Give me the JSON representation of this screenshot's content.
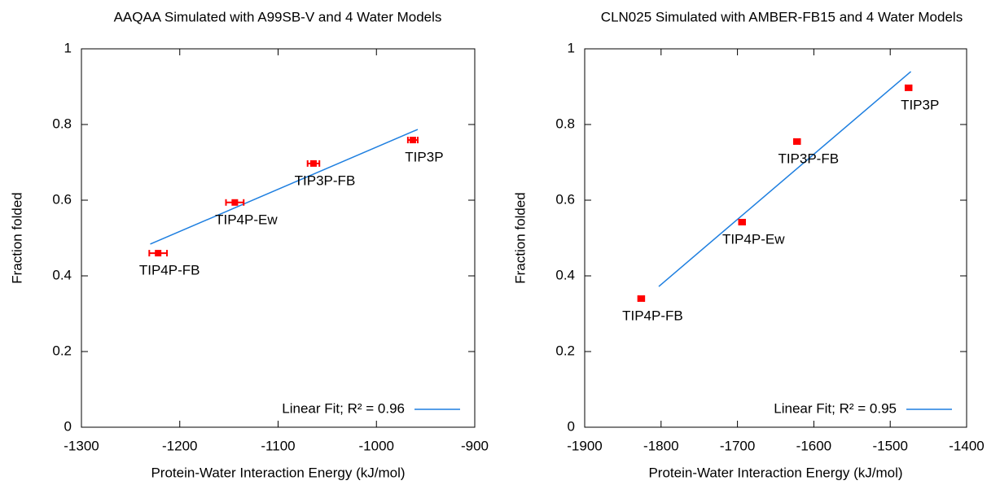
{
  "chart_data": [
    {
      "type": "scatter",
      "title": "AAQAA Simulated with A99SB-V and 4 Water Models",
      "xlabel": "Protein-Water Interaction Energy (kJ/mol)",
      "ylabel": "Fraction folded",
      "xlim": [
        -1300,
        -900
      ],
      "ylim": [
        0,
        1
      ],
      "xticks": [
        -1300,
        -1200,
        -1100,
        -1000,
        -900
      ],
      "yticks": [
        0,
        0.2,
        0.4,
        0.6,
        0.8,
        1
      ],
      "legend": "lower right",
      "points": {
        "color": "#ff0000",
        "labels": [
          "TIP4P-FB",
          "TIP4P-Ew",
          "TIP3P-FB",
          "TIP3P"
        ],
        "x": [
          -1222,
          -1144,
          -1064,
          -963
        ],
        "values": [
          0.46,
          0.594,
          0.697,
          0.759
        ],
        "xerr": [
          9,
          9,
          6,
          5
        ]
      },
      "fit": {
        "name": "Linear Fit; R² = 0.96",
        "color": "#1e7fe0",
        "x": [
          -1230,
          -958
        ],
        "values": [
          0.484,
          0.787
        ]
      }
    },
    {
      "type": "scatter",
      "title": "CLN025 Simulated with AMBER-FB15 and 4 Water Models",
      "xlabel": "Protein-Water Interaction Energy (kJ/mol)",
      "ylabel": "Fraction folded",
      "xlim": [
        -1900,
        -1400
      ],
      "ylim": [
        0,
        1
      ],
      "xticks": [
        -1900,
        -1800,
        -1700,
        -1600,
        -1500,
        -1400
      ],
      "yticks": [
        0,
        0.2,
        0.4,
        0.6,
        0.8,
        1
      ],
      "legend": "lower right",
      "points": {
        "color": "#ff0000",
        "labels": [
          "TIP4P-FB",
          "TIP4P-Ew",
          "TIP3P-FB",
          "TIP3P"
        ],
        "x": [
          -1826,
          -1694,
          -1622,
          -1476
        ],
        "values": [
          0.34,
          0.542,
          0.755,
          0.897
        ],
        "xerr": [
          4,
          4,
          4,
          4
        ]
      },
      "fit": {
        "name": "Linear Fit; R² = 0.95",
        "color": "#1e7fe0",
        "x": [
          -1803,
          -1473
        ],
        "values": [
          0.372,
          0.94
        ]
      }
    }
  ]
}
